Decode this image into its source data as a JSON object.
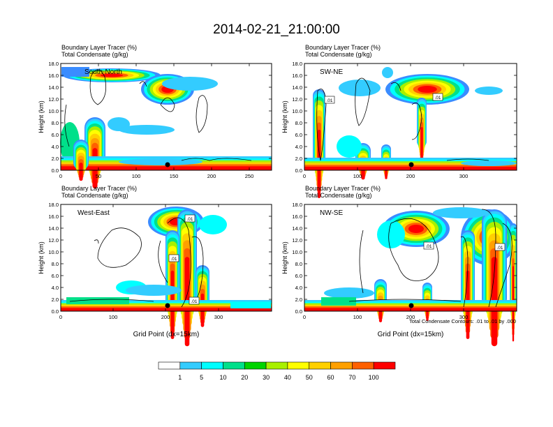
{
  "title": "2014-02-21_21:00:00",
  "panels": [
    {
      "header1": "Boundary Layer Tracer   (%)",
      "header2": "Total Condensate   (g/kg)",
      "label": "South-North",
      "ylabel": "Height (km)",
      "yticks": [
        "0.0",
        "2.0",
        "4.0",
        "6.0",
        "8.0",
        "10.0",
        "12.0",
        "14.0",
        "16.0",
        "18.0"
      ],
      "xticks": [
        "0",
        "50",
        "100",
        "150",
        "200",
        "250"
      ],
      "xlabel": "",
      "box_labels": []
    },
    {
      "header1": "Boundary Layer Tracer   (%)",
      "header2": "Total Condensate   (g/kg)",
      "label": "SW-NE",
      "ylabel": "Height (km)",
      "yticks": [
        "0.0",
        "2.0",
        "4.0",
        "6.0",
        "8.0",
        "10.0",
        "12.0",
        "14.0",
        "16.0",
        "18.0"
      ],
      "xticks": [
        "0",
        "100",
        "200",
        "300"
      ],
      "xlabel": "",
      "box_labels": [
        ".01",
        ".01"
      ]
    },
    {
      "header1": "Boundary Layer Tracer   (%)",
      "header2": "Total Condensate   (g/kg)",
      "label": "West-East",
      "ylabel": "Height (km)",
      "yticks": [
        "0.0",
        "2.0",
        "4.0",
        "6.0",
        "8.0",
        "10.0",
        "12.0",
        "14.0",
        "16.0",
        "18.0"
      ],
      "xticks": [
        "0",
        "100",
        "200",
        "300"
      ],
      "xlabel": "Grid Point (dx=15km)",
      "box_labels": [
        ".01",
        ".01",
        ".01"
      ]
    },
    {
      "header1": "Boundary Layer Tracer   (%)",
      "header2": "Total Condensate   (g/kg)",
      "label": "NW-SE",
      "ylabel": "Height (km)",
      "yticks": [
        "0.0",
        "2.0",
        "4.0",
        "6.0",
        "8.0",
        "10.0",
        "12.0",
        "14.0",
        "16.0",
        "18.0"
      ],
      "xticks": [
        "0",
        "100",
        "200",
        "300"
      ],
      "xlabel": "Grid Point (dx=15km)",
      "box_labels": [
        ".01",
        ".01"
      ]
    }
  ],
  "contour_note": "Total Condensate Contours: .01 to .01 by .000",
  "colorbar": {
    "labels": [
      "1",
      "5",
      "10",
      "20",
      "30",
      "40",
      "50",
      "60",
      "70",
      "100"
    ],
    "colors": [
      "#ffffff",
      "#3a8cff",
      "#33ccff",
      "#00ffff",
      "#00e08a",
      "#00d400",
      "#a8f000",
      "#ffff00",
      "#ffd000",
      "#ffa000",
      "#ff6000",
      "#ff0000"
    ]
  }
}
